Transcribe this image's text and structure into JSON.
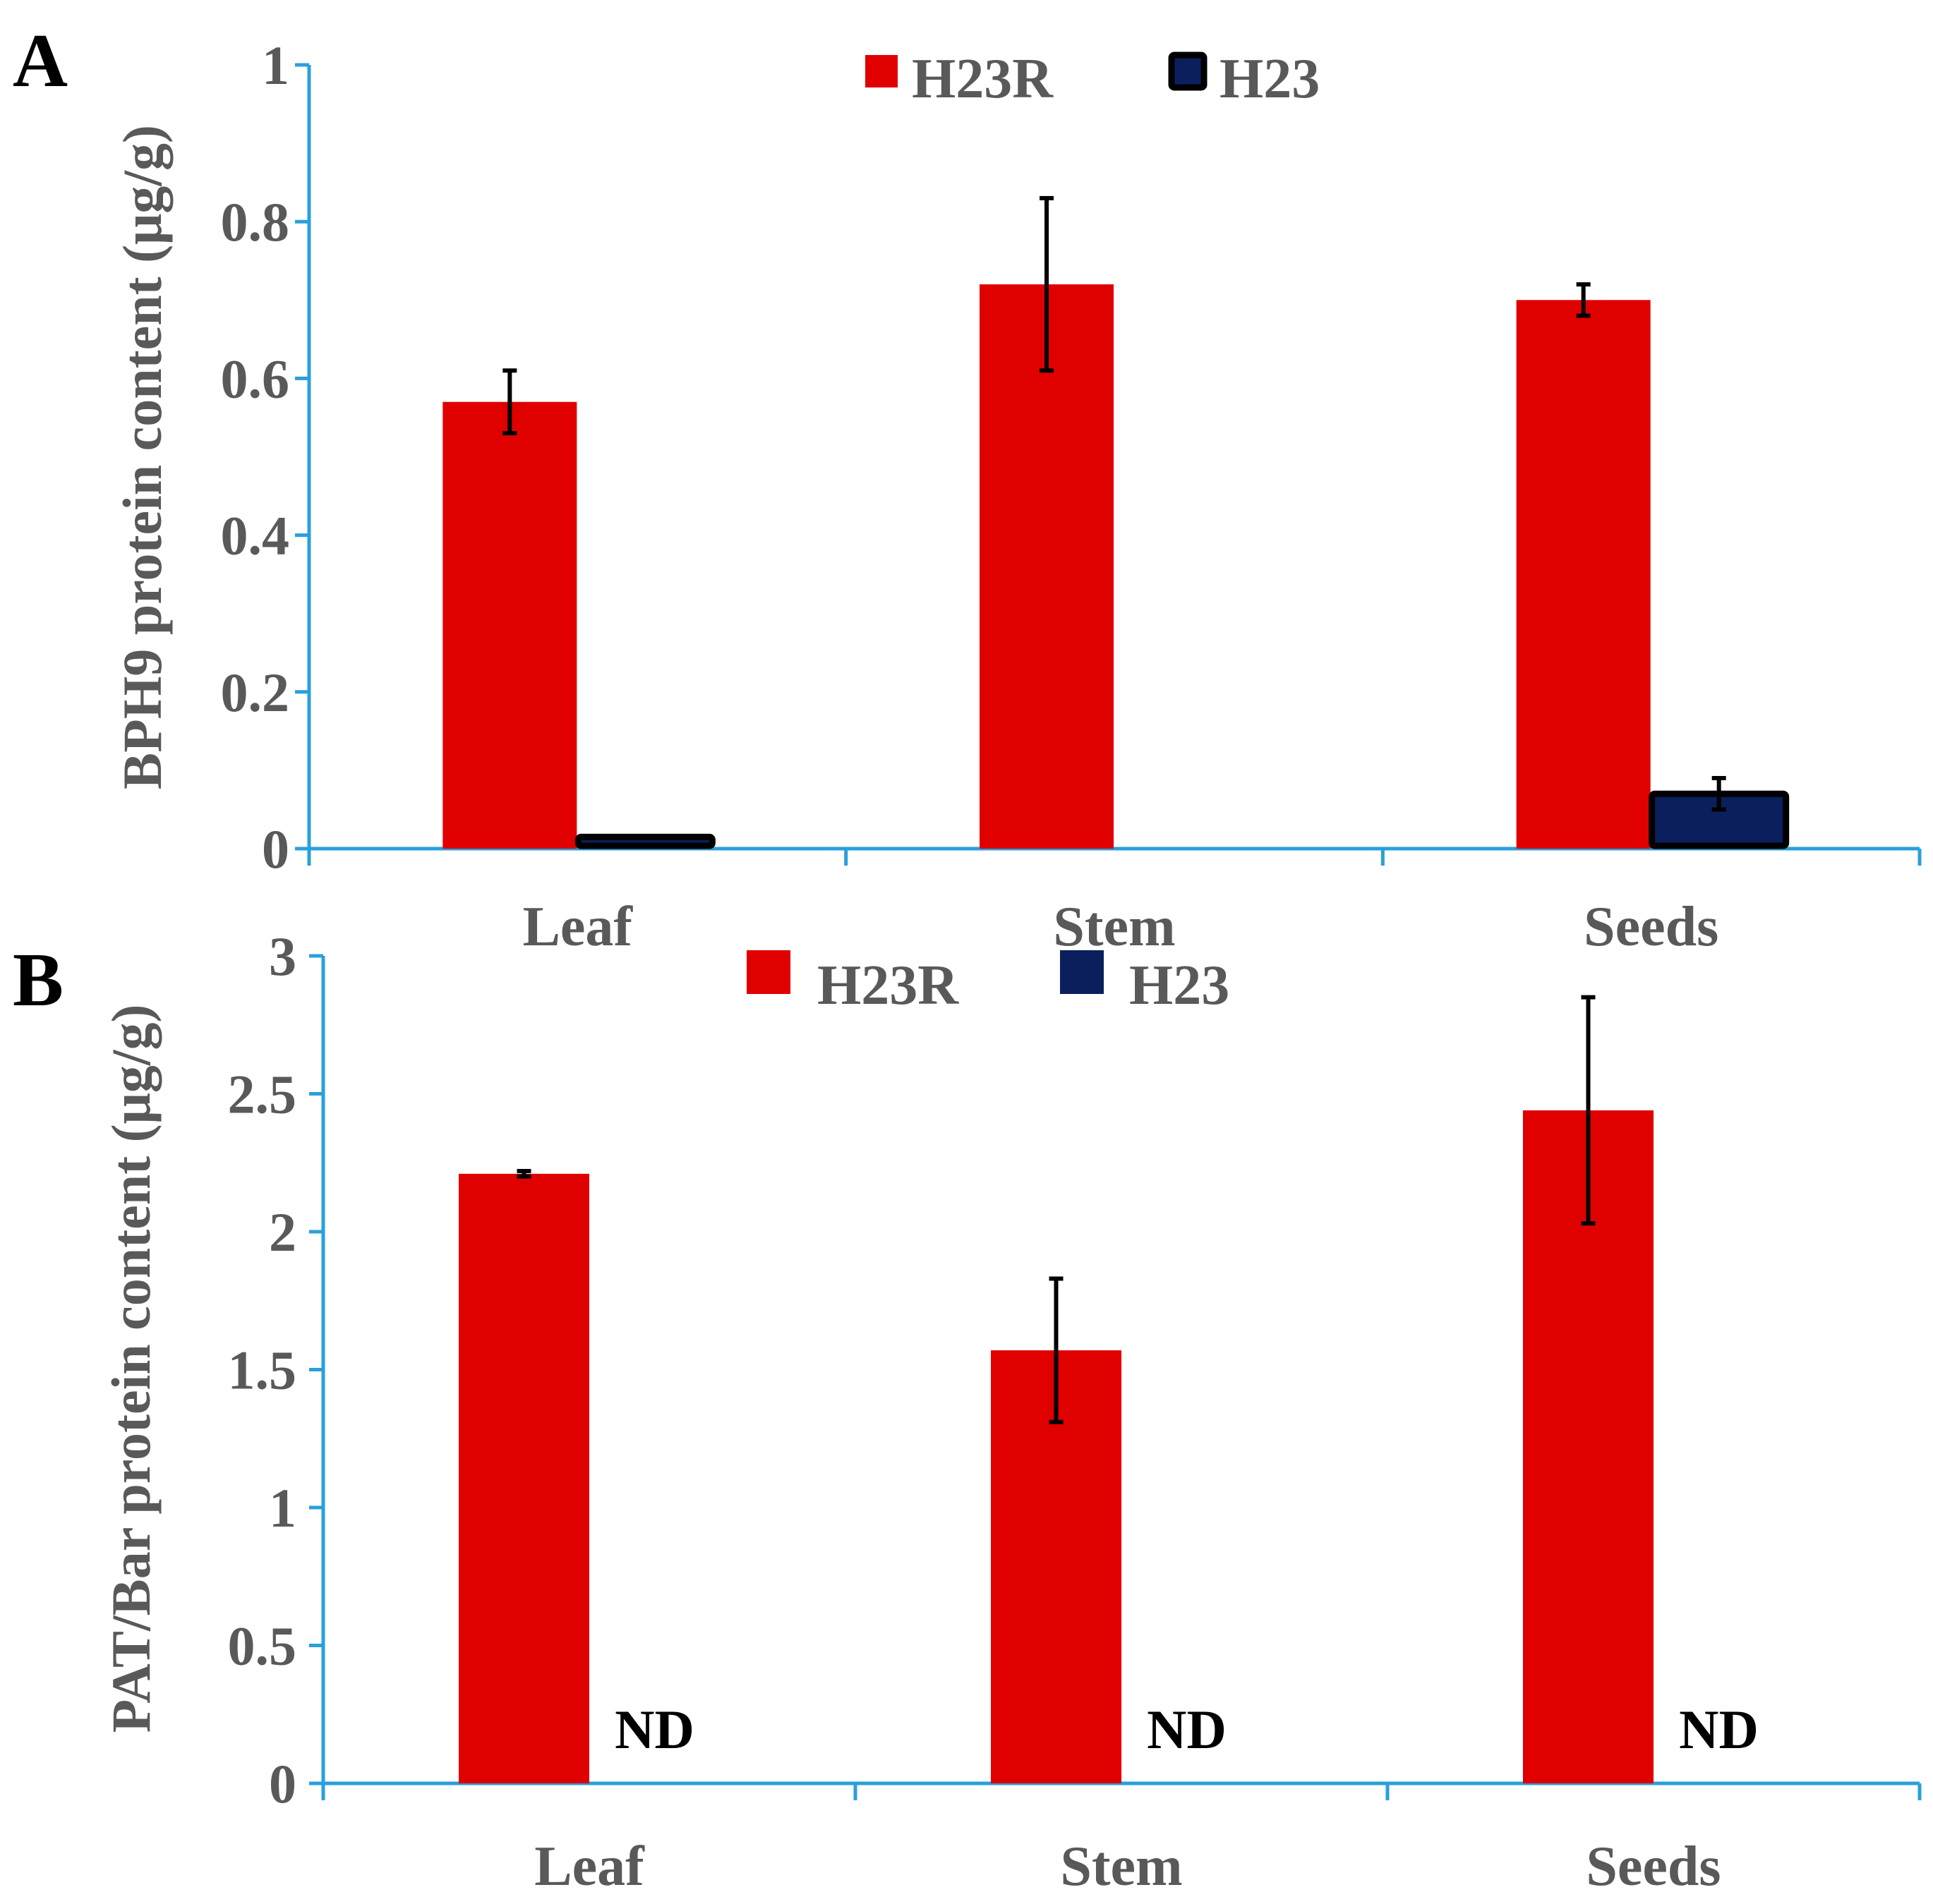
{
  "chart_data": [
    {
      "panel": "A",
      "type": "bar",
      "title": "",
      "xlabel": "",
      "ylabel": "BPH9 protein content (μg/g)",
      "categories": [
        "Leaf",
        "Stem",
        "Seeds"
      ],
      "ylim": [
        0,
        1
      ],
      "yticks": [
        0,
        0.2,
        0.4,
        0.6,
        0.8,
        1
      ],
      "ytick_labels": [
        "0",
        "0.2",
        "0.4",
        "0.6",
        "0.8",
        "1"
      ],
      "legend_position": "top-center",
      "series": [
        {
          "name": "H23R",
          "color": "#e00000",
          "edge": "none",
          "values": [
            0.57,
            0.72,
            0.7
          ],
          "errors": [
            0.04,
            0.11,
            0.02
          ]
        },
        {
          "name": "H23",
          "color": "#0a1f5c",
          "edge": "#000000",
          "values": [
            0.015,
            null,
            0.07
          ],
          "errors": [
            0,
            null,
            0.02
          ]
        }
      ],
      "annotations": []
    },
    {
      "panel": "B",
      "type": "bar",
      "title": "",
      "xlabel": "",
      "ylabel": "PAT/Bar protein content (μg/g)",
      "categories": [
        "Leaf",
        "Stem",
        "Seeds"
      ],
      "ylim": [
        0,
        3
      ],
      "yticks": [
        0,
        0.5,
        1,
        1.5,
        2,
        2.5,
        3
      ],
      "ytick_labels": [
        "0",
        "0.5",
        "1",
        "1.5",
        "2",
        "2.5",
        "3"
      ],
      "legend_position": "top-center",
      "series": [
        {
          "name": "H23R",
          "color": "#e00000",
          "edge": "none",
          "values": [
            2.21,
            1.57,
            2.44
          ],
          "errors": [
            0.01,
            0.26,
            0.41
          ]
        },
        {
          "name": "H23",
          "color": "#0a1f5c",
          "edge": "none",
          "values": [
            null,
            null,
            null
          ],
          "errors": [
            null,
            null,
            null
          ]
        }
      ],
      "annotations": [
        "ND",
        "ND",
        "ND"
      ]
    }
  ],
  "colors": {
    "axis": "#29a0dc",
    "error_bar": "#000000",
    "text": "#595959"
  }
}
